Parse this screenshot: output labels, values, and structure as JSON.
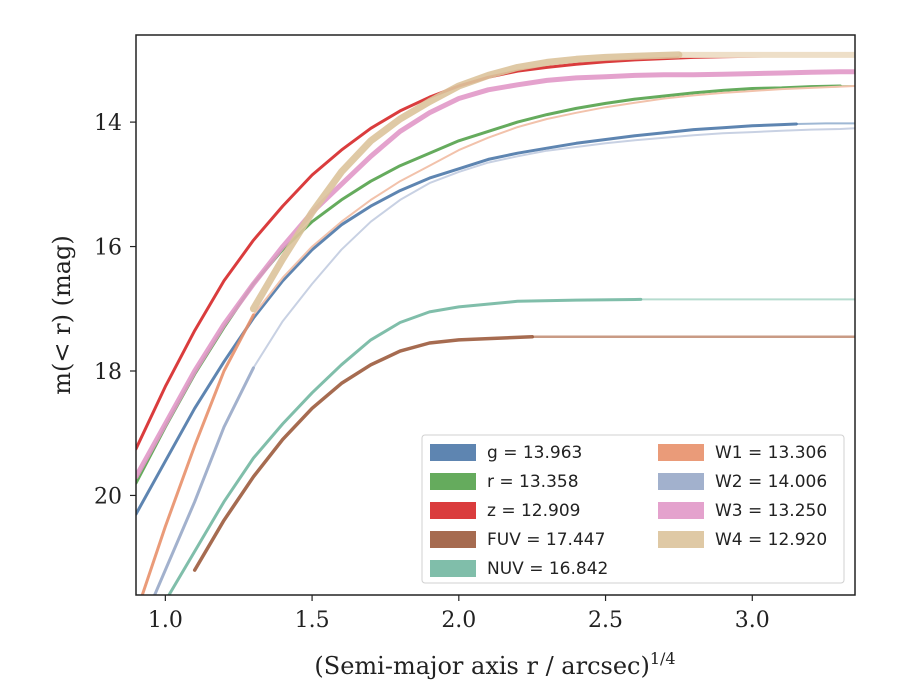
{
  "chart_data": {
    "type": "line",
    "xlabel": "(Semi-major axis r / arcsec)",
    "xlabel_superscript": "1/4",
    "ylabel": "m(< r) (mag)",
    "xlim": [
      0.9,
      3.35
    ],
    "ylim": [
      21.6,
      12.6
    ],
    "y_inverted": true,
    "x_ticks": [
      "1.0",
      "1.5",
      "2.0",
      "2.5",
      "3.0"
    ],
    "y_ticks": [
      "14",
      "16",
      "18",
      "20"
    ],
    "grid": false,
    "legend_position": "lower-right",
    "legend_columns": 2,
    "series": [
      {
        "name": "g = 13.963",
        "color": "#4c78a8",
        "extended_color": "#9fb8d4",
        "width": 3,
        "x": [
          0.9,
          1.0,
          1.1,
          1.2,
          1.3,
          1.4,
          1.5,
          1.6,
          1.7,
          1.8,
          1.9,
          2.0,
          2.1,
          2.2,
          2.3,
          2.4,
          2.5,
          2.6,
          2.7,
          2.8,
          2.9,
          3.0,
          3.1,
          3.15,
          3.25,
          3.35
        ],
        "y": [
          20.3,
          19.45,
          18.6,
          17.85,
          17.15,
          16.55,
          16.05,
          15.65,
          15.35,
          15.1,
          14.9,
          14.75,
          14.6,
          14.5,
          14.42,
          14.34,
          14.28,
          14.22,
          14.17,
          14.12,
          14.09,
          14.06,
          14.04,
          14.03,
          14.02,
          14.02
        ],
        "extended_from": 3.15
      },
      {
        "name": "r = 13.358",
        "color": "#54a24b",
        "extended_color": "#a9d3a4",
        "width": 3,
        "x": [
          0.9,
          1.0,
          1.1,
          1.2,
          1.3,
          1.4,
          1.5,
          1.6,
          1.7,
          1.8,
          1.9,
          2.0,
          2.1,
          2.2,
          2.3,
          2.4,
          2.5,
          2.6,
          2.7,
          2.8,
          2.9,
          3.0,
          3.1,
          3.2,
          3.3,
          3.35
        ],
        "y": [
          19.8,
          18.9,
          18.05,
          17.3,
          16.6,
          16.05,
          15.6,
          15.25,
          14.95,
          14.7,
          14.5,
          14.3,
          14.15,
          14.0,
          13.88,
          13.78,
          13.7,
          13.63,
          13.58,
          13.53,
          13.49,
          13.46,
          13.45,
          13.43,
          13.42,
          13.42
        ],
        "extended_from": 3.3
      },
      {
        "name": "z = 12.909",
        "color": "#d62728",
        "extended_color": "#ea9393",
        "width": 3,
        "x": [
          0.9,
          1.0,
          1.1,
          1.2,
          1.3,
          1.4,
          1.5,
          1.6,
          1.7,
          1.8,
          1.9,
          2.0,
          2.1,
          2.2,
          2.3,
          2.4,
          2.5,
          2.6,
          2.7,
          2.8,
          2.9,
          3.0,
          3.1,
          3.2,
          3.3,
          3.35
        ],
        "y": [
          19.25,
          18.25,
          17.35,
          16.55,
          15.9,
          15.35,
          14.85,
          14.45,
          14.1,
          13.82,
          13.6,
          13.42,
          13.28,
          13.18,
          13.12,
          13.07,
          13.03,
          13.0,
          12.98,
          12.96,
          12.95,
          12.94,
          12.93,
          12.93,
          12.92,
          12.92
        ],
        "extended_from": 3.35
      },
      {
        "name": "FUV = 17.447",
        "color": "#9c5b3d",
        "extended_color": "#c99b85",
        "width": 3.5,
        "x": [
          1.1,
          1.2,
          1.3,
          1.4,
          1.5,
          1.6,
          1.7,
          1.8,
          1.9,
          2.0,
          2.1,
          2.25,
          2.5,
          2.8,
          3.1,
          3.35
        ],
        "y": [
          21.2,
          20.4,
          19.7,
          19.1,
          18.6,
          18.2,
          17.9,
          17.68,
          17.55,
          17.5,
          17.48,
          17.45,
          17.45,
          17.45,
          17.45,
          17.45
        ],
        "extended_from": 2.25
      },
      {
        "name": "NUV = 16.842",
        "color": "#72b7a1",
        "extended_color": "#b6dccf",
        "width": 3,
        "x": [
          1.0,
          1.1,
          1.2,
          1.3,
          1.4,
          1.5,
          1.6,
          1.7,
          1.8,
          1.9,
          2.0,
          2.2,
          2.4,
          2.62,
          2.8,
          3.1,
          3.35
        ],
        "y": [
          21.7,
          20.9,
          20.1,
          19.4,
          18.85,
          18.35,
          17.9,
          17.5,
          17.22,
          17.05,
          16.97,
          16.88,
          16.86,
          16.85,
          16.85,
          16.85,
          16.85
        ],
        "extended_from": 2.62
      },
      {
        "name": "W1 = 13.306",
        "color": "#e8906a",
        "extended_color": "#f2c2ab",
        "width": 3,
        "x": [
          0.9,
          1.0,
          1.1,
          1.2,
          1.3,
          1.4,
          1.5,
          1.6,
          1.7,
          1.8,
          1.9,
          2.0,
          2.1,
          2.2,
          2.3,
          2.4,
          2.5,
          2.6,
          2.7,
          2.8,
          2.9,
          3.0,
          3.1,
          3.2,
          3.3,
          3.35
        ],
        "y": [
          21.9,
          20.5,
          19.2,
          18.0,
          17.1,
          16.5,
          16.0,
          15.6,
          15.25,
          14.95,
          14.7,
          14.45,
          14.25,
          14.08,
          13.95,
          13.85,
          13.76,
          13.69,
          13.62,
          13.57,
          13.53,
          13.5,
          13.47,
          13.45,
          13.43,
          13.42
        ],
        "extended_from": 1.3
      },
      {
        "name": "W2 = 14.006",
        "color": "#98a8c8",
        "extended_color": "#c8d1e3",
        "width": 3,
        "x": [
          0.9,
          1.0,
          1.1,
          1.2,
          1.3,
          1.4,
          1.5,
          1.6,
          1.7,
          1.8,
          1.9,
          2.0,
          2.1,
          2.2,
          2.3,
          2.4,
          2.5,
          2.6,
          2.7,
          2.8,
          2.9,
          3.0,
          3.1,
          3.2,
          3.3,
          3.35
        ],
        "y": [
          22.3,
          21.2,
          20.1,
          18.9,
          17.95,
          17.2,
          16.6,
          16.05,
          15.6,
          15.25,
          14.98,
          14.8,
          14.65,
          14.55,
          14.46,
          14.4,
          14.34,
          14.29,
          14.25,
          14.21,
          14.18,
          14.16,
          14.14,
          14.12,
          14.11,
          14.1
        ],
        "extended_from": 1.3
      },
      {
        "name": "W3 = 13.250",
        "color": "#e198c8",
        "extended_color": "#f0cbe3",
        "width": 5,
        "x": [
          0.9,
          1.0,
          1.1,
          1.2,
          1.3,
          1.4,
          1.5,
          1.6,
          1.7,
          1.8,
          1.9,
          2.0,
          2.1,
          2.2,
          2.3,
          2.4,
          2.5,
          2.6,
          2.7,
          2.8,
          2.9,
          3.0,
          3.1,
          3.2,
          3.3,
          3.35
        ],
        "y": [
          19.7,
          18.85,
          18.0,
          17.25,
          16.6,
          16.0,
          15.45,
          15.0,
          14.55,
          14.15,
          13.85,
          13.62,
          13.48,
          13.4,
          13.33,
          13.29,
          13.27,
          13.25,
          13.24,
          13.24,
          13.23,
          13.22,
          13.21,
          13.2,
          13.19,
          13.19
        ],
        "extended_from": 3.35
      },
      {
        "name": "W4 = 12.920",
        "color": "#dcc39b",
        "extended_color": "#eedfc8",
        "width": 7,
        "x": [
          1.3,
          1.4,
          1.5,
          1.6,
          1.7,
          1.8,
          1.9,
          2.0,
          2.1,
          2.2,
          2.3,
          2.4,
          2.5,
          2.6,
          2.75,
          2.9,
          3.1,
          3.35
        ],
        "y": [
          17.0,
          16.2,
          15.45,
          14.8,
          14.3,
          13.95,
          13.67,
          13.42,
          13.25,
          13.12,
          13.04,
          12.99,
          12.96,
          12.94,
          12.92,
          12.92,
          12.92,
          12.92
        ],
        "extended_from": 2.75
      }
    ]
  },
  "legend": {
    "left": [
      {
        "label": "g = 13.963",
        "color": "#4c78a8"
      },
      {
        "label": "r = 13.358",
        "color": "#54a24b"
      },
      {
        "label": "z = 12.909",
        "color": "#d62728"
      },
      {
        "label": "FUV = 17.447",
        "color": "#9c5b3d"
      },
      {
        "label": "NUV = 16.842",
        "color": "#72b7a1"
      }
    ],
    "right": [
      {
        "label": "W1 = 13.306",
        "color": "#e8906a"
      },
      {
        "label": "W2 = 14.006",
        "color": "#98a8c8"
      },
      {
        "label": "W3 = 13.250",
        "color": "#e198c8"
      },
      {
        "label": "W4 = 12.920",
        "color": "#dcc39b"
      }
    ]
  }
}
